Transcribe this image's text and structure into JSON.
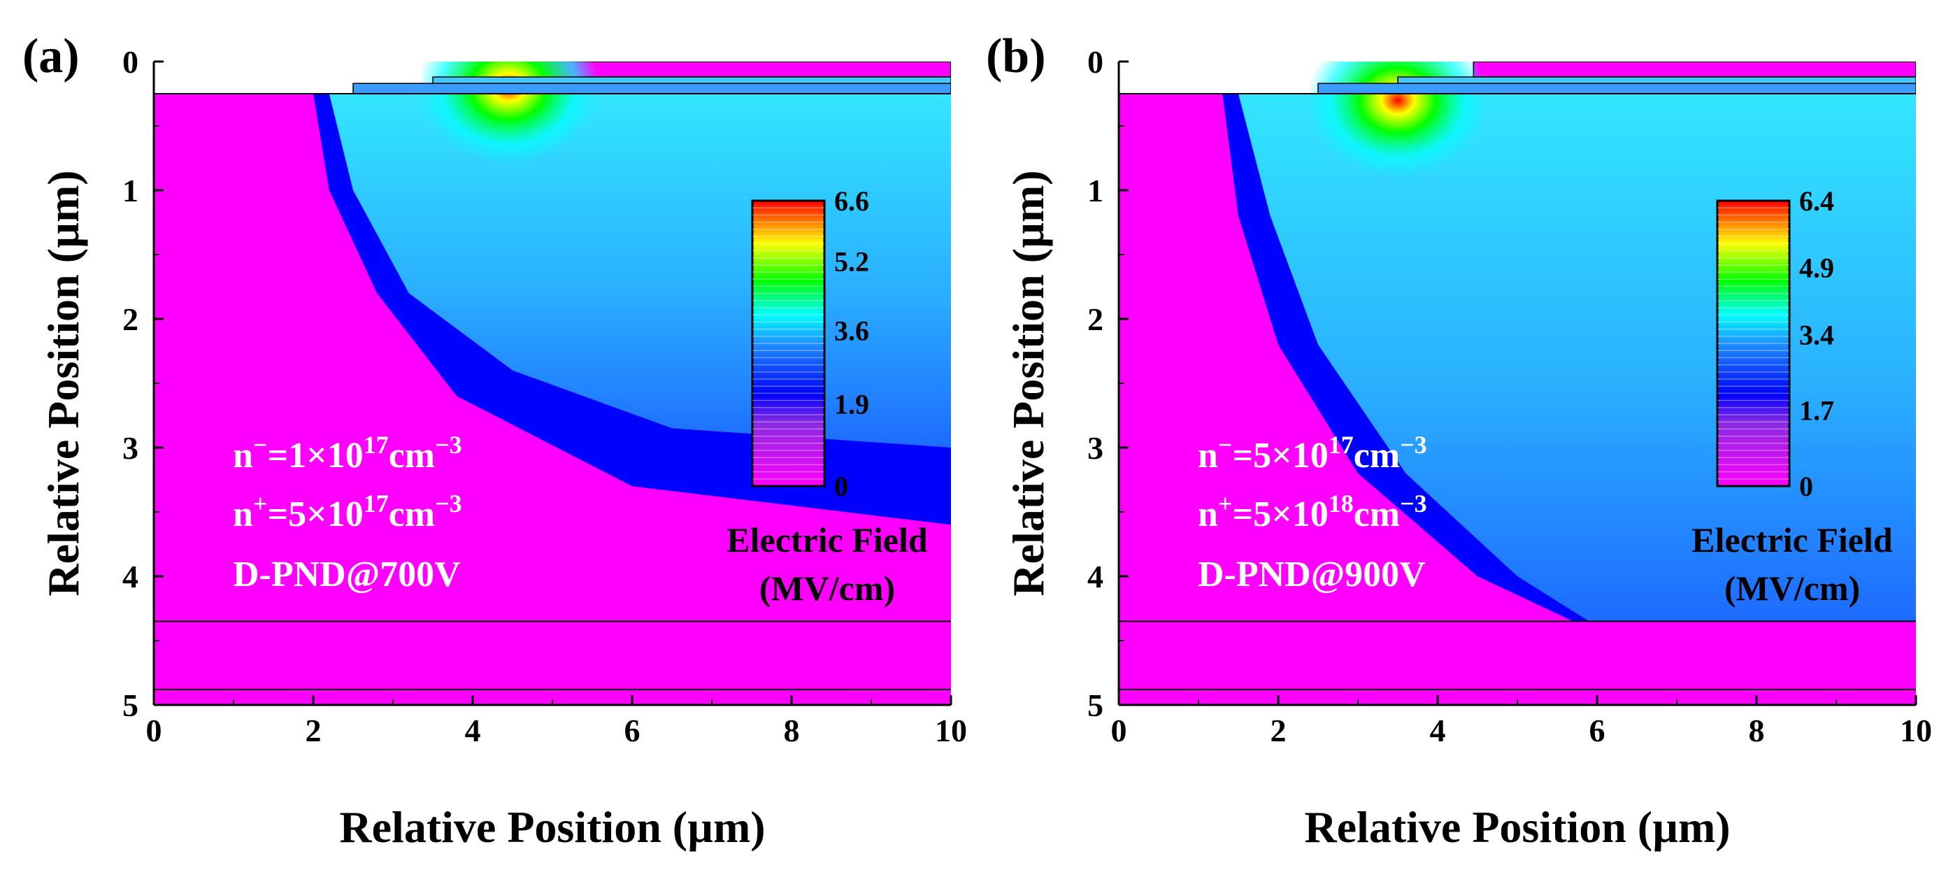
{
  "chart_data": [
    {
      "type": "heatmap",
      "panel_label": "(a)",
      "xlabel": "Relative Position (µm)",
      "ylabel": "Relative Position (µm)",
      "xlim": [
        0,
        10
      ],
      "ylim": [
        5,
        0
      ],
      "x_ticks": [
        "0",
        "2",
        "4",
        "6",
        "8",
        "10"
      ],
      "y_ticks": [
        "0",
        "1",
        "2",
        "3",
        "4",
        "5"
      ],
      "annotations": {
        "line1_base": "n",
        "line1_sup": "−",
        "line1_mid": "=1×10",
        "line1_exp": "17",
        "line1_unit": "cm",
        "line1_unit_exp": "−3",
        "line2_base": "n",
        "line2_sup": "+",
        "line2_mid": "=5×10",
        "line2_exp": "17",
        "line2_unit": "cm",
        "line2_unit_exp": "−3",
        "line3": "D-PND@700V"
      },
      "colorbar": {
        "title": "Electric Field",
        "unit": "(MV/cm)",
        "ticks": [
          "6.6",
          "5.2",
          "3.6",
          "1.9",
          "0"
        ],
        "tick_values": [
          6.6,
          5.2,
          3.6,
          1.9,
          0
        ],
        "max": 6.6
      },
      "field": {
        "peak_x": 4.45,
        "peak_y": 0.2,
        "peak_value": 6.6,
        "depletion_boundary": [
          [
            2.0,
            0.25
          ],
          [
            2.2,
            1.0
          ],
          [
            2.8,
            1.8
          ],
          [
            3.8,
            2.6
          ],
          [
            6.0,
            3.3
          ],
          [
            10.0,
            3.6
          ]
        ],
        "contour_boundary": [
          [
            2.2,
            0.25
          ],
          [
            2.5,
            1.0
          ],
          [
            3.2,
            1.8
          ],
          [
            4.5,
            2.4
          ],
          [
            6.5,
            2.85
          ],
          [
            10.0,
            3.0
          ]
        ]
      },
      "layers_y": [
        4.35,
        4.88
      ],
      "colors": {
        "max": "#ff0000",
        "high": "#ffff00",
        "mid_high": "#00ff00",
        "mid": "#00ffff",
        "low": "#0000ff",
        "min": "#ff00ff"
      }
    },
    {
      "type": "heatmap",
      "panel_label": "(b)",
      "xlabel": "Relative Position (µm)",
      "ylabel": "Relative Position (µm)",
      "xlim": [
        0,
        10
      ],
      "ylim": [
        5,
        0
      ],
      "x_ticks": [
        "0",
        "2",
        "4",
        "6",
        "8",
        "10"
      ],
      "y_ticks": [
        "0",
        "1",
        "2",
        "3",
        "4",
        "5"
      ],
      "annotations": {
        "line1_base": "n",
        "line1_sup": "−",
        "line1_mid": "=5×10",
        "line1_exp": "17",
        "line1_unit": "cm",
        "line1_unit_exp": "−3",
        "line2_base": "n",
        "line2_sup": "+",
        "line2_mid": "=5×10",
        "line2_exp": "18",
        "line2_unit": "cm",
        "line2_unit_exp": "−3",
        "line3": "D-PND@900V"
      },
      "colorbar": {
        "title": "Electric Field",
        "unit": "(MV/cm)",
        "ticks": [
          "6.4",
          "4.9",
          "3.4",
          "1.7",
          "0"
        ],
        "tick_values": [
          6.4,
          4.9,
          3.4,
          1.7,
          0
        ],
        "max": 6.4
      },
      "field": {
        "peak_x": 3.5,
        "peak_y": 0.3,
        "peak_value": 6.4,
        "depletion_boundary": [
          [
            1.3,
            0.25
          ],
          [
            1.5,
            1.2
          ],
          [
            2.0,
            2.2
          ],
          [
            3.0,
            3.2
          ],
          [
            4.5,
            4.0
          ],
          [
            5.7,
            4.35
          ]
        ],
        "contour_boundary": [
          [
            1.5,
            0.25
          ],
          [
            1.9,
            1.2
          ],
          [
            2.5,
            2.2
          ],
          [
            3.6,
            3.2
          ],
          [
            5.0,
            4.0
          ],
          [
            5.9,
            4.35
          ]
        ]
      },
      "layers_y": [
        4.35,
        4.88
      ],
      "colors": {
        "max": "#ff0000",
        "high": "#ffff00",
        "mid_high": "#00ff00",
        "mid": "#00ffff",
        "low": "#0000ff",
        "min": "#ff00ff"
      }
    }
  ]
}
